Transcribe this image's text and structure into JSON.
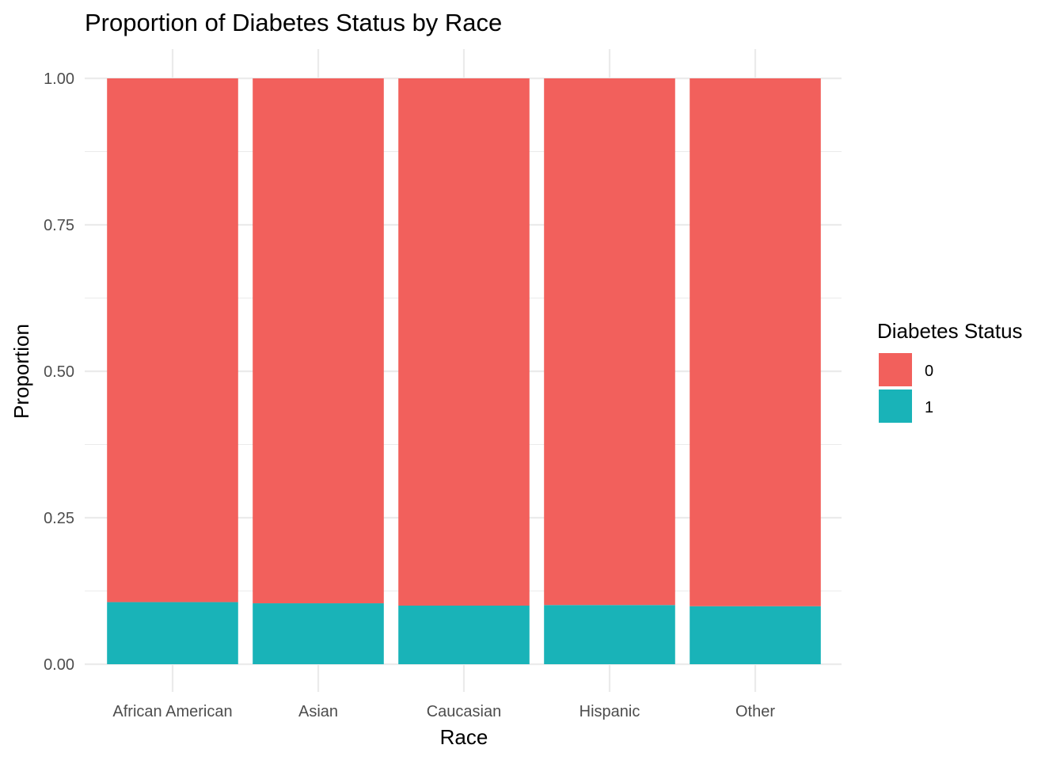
{
  "chart_data": {
    "type": "bar",
    "stacked": true,
    "title": "Proportion of Diabetes Status by Race",
    "xlabel": "Race",
    "ylabel": "Proportion",
    "categories": [
      "African American",
      "Asian",
      "Caucasian",
      "Hispanic",
      "Other"
    ],
    "series": [
      {
        "name": "1",
        "color": "#19b3b8",
        "values": [
          0.106,
          0.104,
          0.1,
          0.101,
          0.099
        ]
      },
      {
        "name": "0",
        "color": "#f2605c",
        "values": [
          0.894,
          0.896,
          0.9,
          0.899,
          0.901
        ]
      }
    ],
    "ylim": [
      0,
      1
    ],
    "yticks": [
      "0.00",
      "0.25",
      "0.50",
      "0.75",
      "1.00"
    ],
    "ytick_values": [
      0,
      0.25,
      0.5,
      0.75,
      1.0
    ],
    "grid": true,
    "legend": {
      "title": "Diabetes Status",
      "placement": "right",
      "entries": [
        {
          "label": "0",
          "color": "#f2605c"
        },
        {
          "label": "1",
          "color": "#19b3b8"
        }
      ]
    }
  }
}
